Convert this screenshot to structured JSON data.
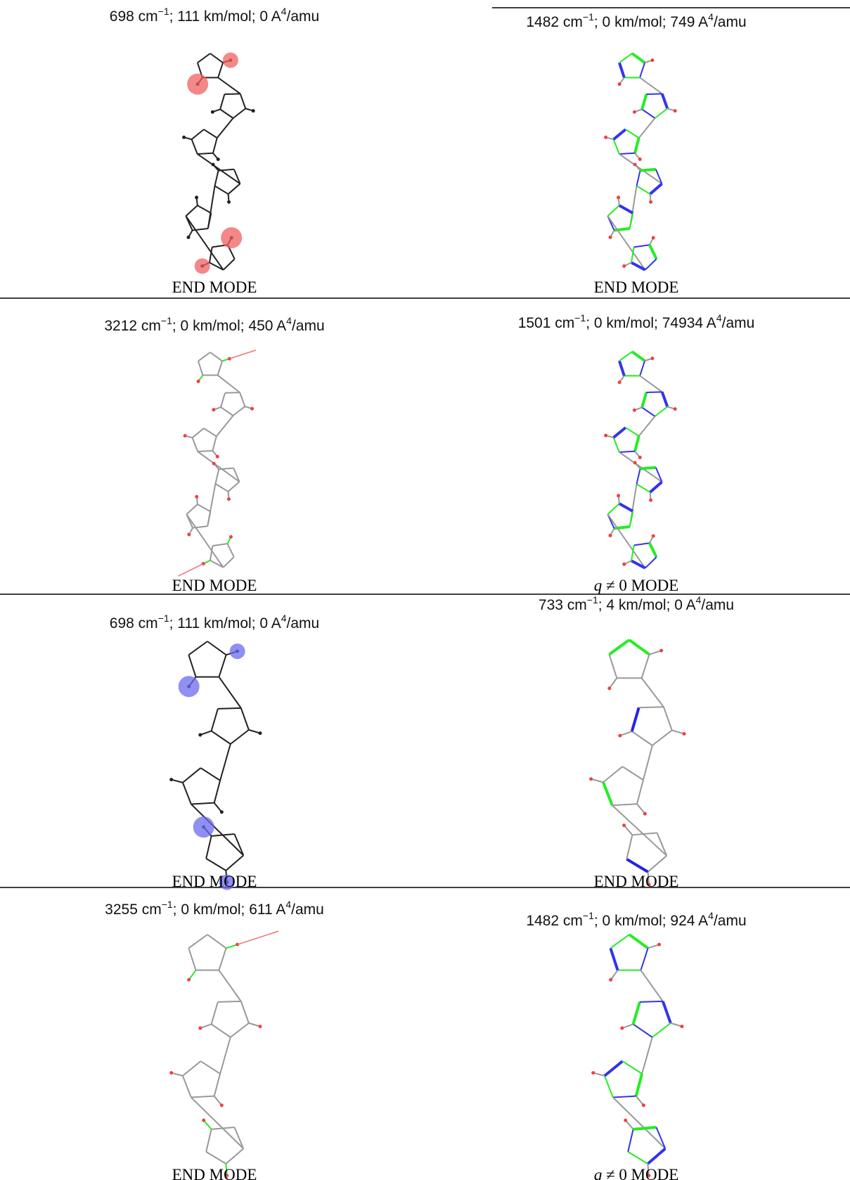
{
  "cells": [
    {
      "label": [
        "698 cm",
        "−1",
        "; 111 km/mol; 0 A",
        "4",
        "/amu"
      ],
      "footer": {
        "text": "END MODE"
      }
    },
    {
      "label": [
        "1482 cm",
        "−1",
        "; 0 km/mol; 749 A",
        "4",
        "/amu"
      ],
      "footer": {
        "text": "END MODE"
      }
    },
    {
      "label": [
        "3212 cm",
        "−1",
        "; 0 km/mol; 450 A",
        "4",
        "/amu"
      ],
      "footer": {
        "text": "END MODE"
      }
    },
    {
      "label": [
        "1501 cm",
        "−1",
        "; 0 km/mol; 74934 A",
        "4",
        "/amu"
      ],
      "footer": {
        "italic": "q",
        "text": " ≠ 0 MODE"
      }
    },
    {
      "label": [
        "698 cm",
        "−1",
        "; 111 km/mol; 0 A",
        "4",
        "/amu"
      ],
      "footer": {
        "text": "END MODE"
      }
    },
    {
      "label": [
        "733 cm",
        "−1",
        "; 4 km/mol; 0 A",
        "4",
        "/amu"
      ],
      "footer": {
        "text": "END MODE"
      }
    },
    {
      "label": [
        "3255 cm",
        "−1",
        "; 0 km/mol; 611 A",
        "4",
        "/amu"
      ],
      "footer": {
        "text": "END MODE"
      }
    },
    {
      "label": [
        "1482 cm",
        "−1",
        "; 0 km/mol; 924 A",
        "4",
        "/amu"
      ],
      "footer": {
        "italic": "q",
        "text": " ≠ 0 MODE"
      }
    }
  ]
}
